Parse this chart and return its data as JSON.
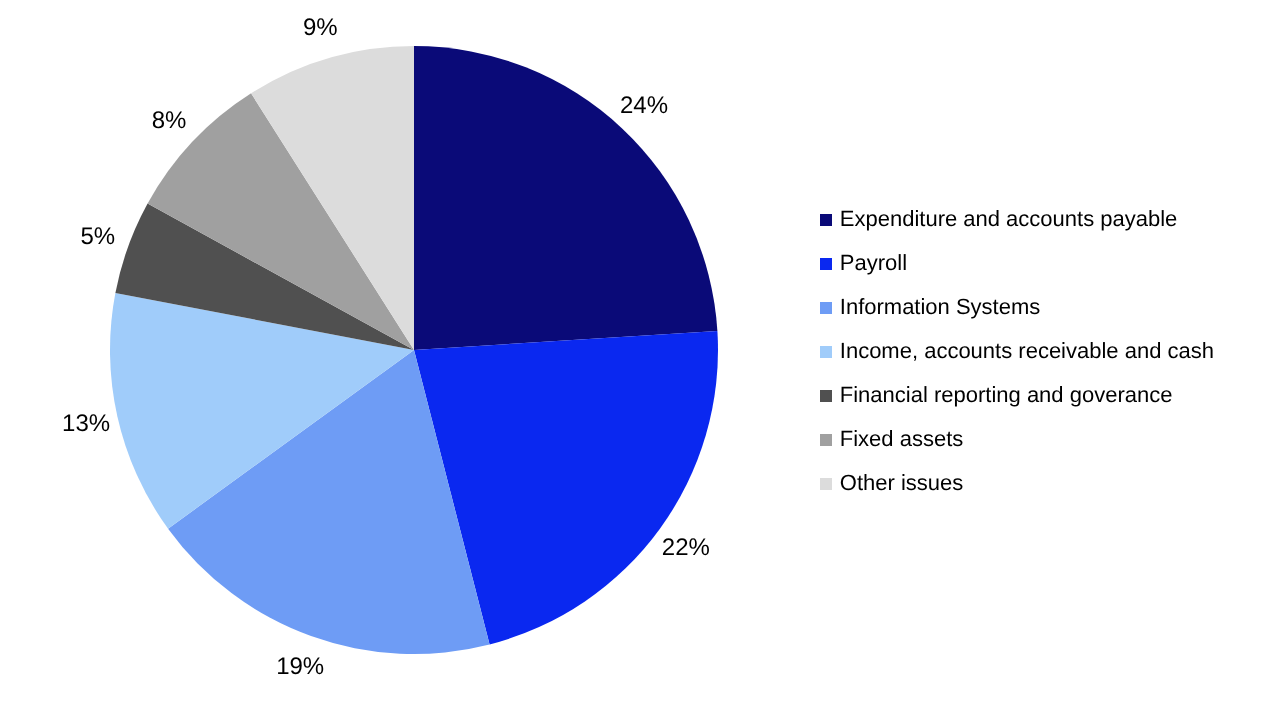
{
  "chart_data": {
    "type": "pie",
    "categories": [
      "Expenditure and accounts payable",
      "Payroll",
      "Information Systems",
      "Income, accounts receivable and cash",
      "Financial reporting and goverance",
      "Fixed assets",
      "Other issues"
    ],
    "values": [
      24,
      22,
      19,
      13,
      5,
      8,
      9
    ],
    "colors": [
      "#0a0a78",
      "#0a28f0",
      "#6e9cf5",
      "#a0ccfa",
      "#505050",
      "#a0a0a0",
      "#dcdcdc"
    ],
    "value_labels": [
      "24%",
      "22%",
      "19%",
      "13%",
      "5%",
      "8%",
      "9%"
    ],
    "legend": "right"
  }
}
